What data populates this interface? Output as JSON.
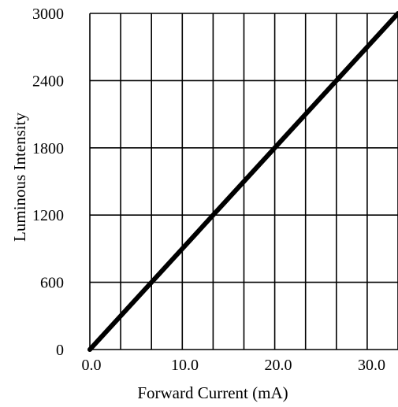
{
  "chart_data": {
    "type": "line",
    "title": "",
    "xlabel": "Forward Current (mA)",
    "ylabel": "Luminous Intensity",
    "xlim": [
      0,
      33
    ],
    "ylim": [
      0,
      3000
    ],
    "x_ticks": [
      0,
      10,
      20,
      30
    ],
    "x_tick_labels": [
      "0.0",
      "10.0",
      "20.0",
      "30.0"
    ],
    "x_grid": [
      0,
      3.3,
      6.6,
      9.9,
      13.2,
      16.5,
      19.8,
      23.1,
      26.4,
      29.7,
      33
    ],
    "y_ticks": [
      0,
      600,
      1200,
      1800,
      2400,
      3000
    ],
    "y_tick_labels": [
      "0",
      "600",
      "1200",
      "1800",
      "2400",
      "3000"
    ],
    "grid": true,
    "series": [
      {
        "x": [
          0,
          33
        ],
        "y": [
          0,
          3000
        ],
        "color": "#000000"
      }
    ]
  }
}
